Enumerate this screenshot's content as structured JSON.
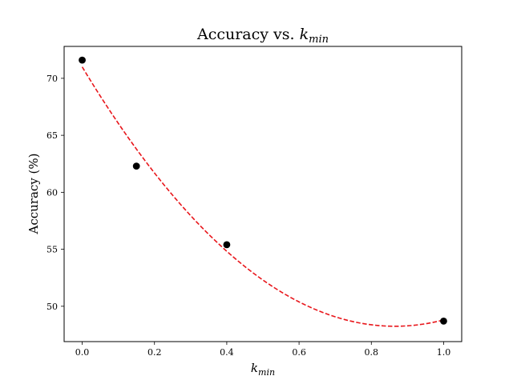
{
  "chart_data": {
    "type": "scatter",
    "title": {
      "prefix": "Accuracy vs. ",
      "var": "k",
      "sub": "min"
    },
    "xlabel": {
      "var": "k",
      "sub": "min"
    },
    "ylabel": "Accuracy (%)",
    "xlim": [
      -0.05,
      1.05
    ],
    "ylim": [
      46.9,
      72.8
    ],
    "xticks": [
      0.0,
      0.2,
      0.4,
      0.6,
      0.8,
      1.0
    ],
    "xtick_labels": [
      "0.0",
      "0.2",
      "0.4",
      "0.6",
      "0.8",
      "1.0"
    ],
    "yticks": [
      50,
      55,
      60,
      65,
      70
    ],
    "ytick_labels": [
      "50",
      "55",
      "60",
      "65",
      "70"
    ],
    "grid": false,
    "points": {
      "x": [
        0.0,
        0.15,
        0.4,
        1.0
      ],
      "y": [
        71.6,
        62.3,
        55.4,
        48.7
      ],
      "color": "#000000"
    },
    "fit": {
      "style": "dashed",
      "color": "#e8161b",
      "coefficients": [
        71.0,
        -52.6,
        30.4
      ]
    }
  }
}
